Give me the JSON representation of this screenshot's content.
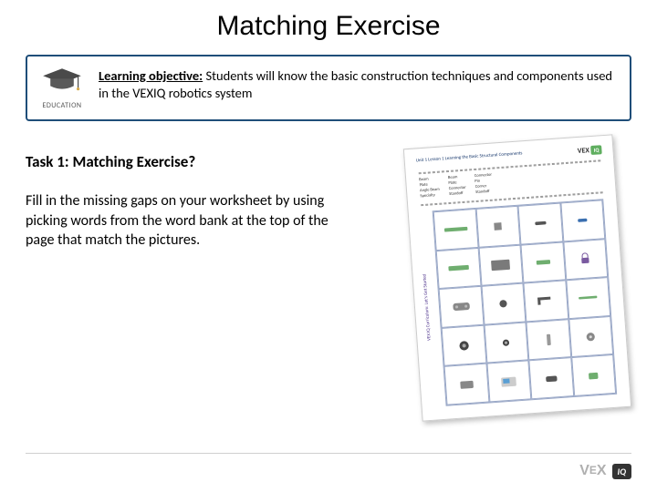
{
  "title": "Matching Exercise",
  "objective": {
    "lead": "Learning objective:",
    "text": " Students will know the basic construction techniques and components used in the VEXIQ robotics system",
    "icon_label": "EDUCATION",
    "box_border_color": "#1f4e79"
  },
  "task": {
    "heading": "Task 1: Matching Exercise?",
    "body": "Fill in the missing gaps on your worksheet by using picking words from the word bank at the top of the page that match the pictures."
  },
  "worksheet": {
    "rotation_deg": -4,
    "header_text": "Unit 1 Lesson 1 Learning the Basic Structural Components",
    "sidebar_text": "VEX IQ Curriculum: Let's Get Started",
    "logo_text": "VEX",
    "logo_badge": "IQ",
    "wordbank": {
      "col1": [
        "Beam",
        "Plate",
        "Angle Beam",
        "Specialty"
      ],
      "col2": [
        "Beam",
        "Plate",
        "Connector",
        "Standoff"
      ],
      "col3": [
        "Connector",
        "Pin",
        "Corner",
        "Standoff"
      ]
    },
    "grid": {
      "rows": 5,
      "cols": 4,
      "border_color": "#9aa8c7",
      "cells": [
        {
          "shape": "beam-long",
          "color": "#6fae6f"
        },
        {
          "shape": "cube",
          "color": "#888888"
        },
        {
          "shape": "pin-double",
          "color": "#555555"
        },
        {
          "shape": "pin-blue",
          "color": "#3a6fb0"
        },
        {
          "shape": "beam-green",
          "color": "#6fae6f"
        },
        {
          "shape": "plate-gray",
          "color": "#7a7a7a"
        },
        {
          "shape": "beam-short",
          "color": "#6fae6f"
        },
        {
          "shape": "lock",
          "color": "#7a5aa0"
        },
        {
          "shape": "controller",
          "color": "#888888"
        },
        {
          "shape": "connector-round",
          "color": "#555555"
        },
        {
          "shape": "angle-beam",
          "color": "#555555"
        },
        {
          "shape": "beam-thin",
          "color": "#6fae6f"
        },
        {
          "shape": "wheel",
          "color": "#444444"
        },
        {
          "shape": "wheel-small",
          "color": "#444444"
        },
        {
          "shape": "standoff",
          "color": "#999999"
        },
        {
          "shape": "gear",
          "color": "#888888"
        },
        {
          "shape": "motor",
          "color": "#888888"
        },
        {
          "shape": "brain",
          "color": "#cccccc"
        },
        {
          "shape": "bumper",
          "color": "#555555"
        },
        {
          "shape": "sensor",
          "color": "#6fae6f"
        }
      ]
    }
  },
  "footer": {
    "logo_text": "VEX",
    "badge_text": "IQ",
    "logo_color": "#b0b0b0",
    "badge_bg": "#333333"
  },
  "colors": {
    "background": "#ffffff",
    "text": "#000000",
    "footer_line": "#cfcfcf"
  }
}
